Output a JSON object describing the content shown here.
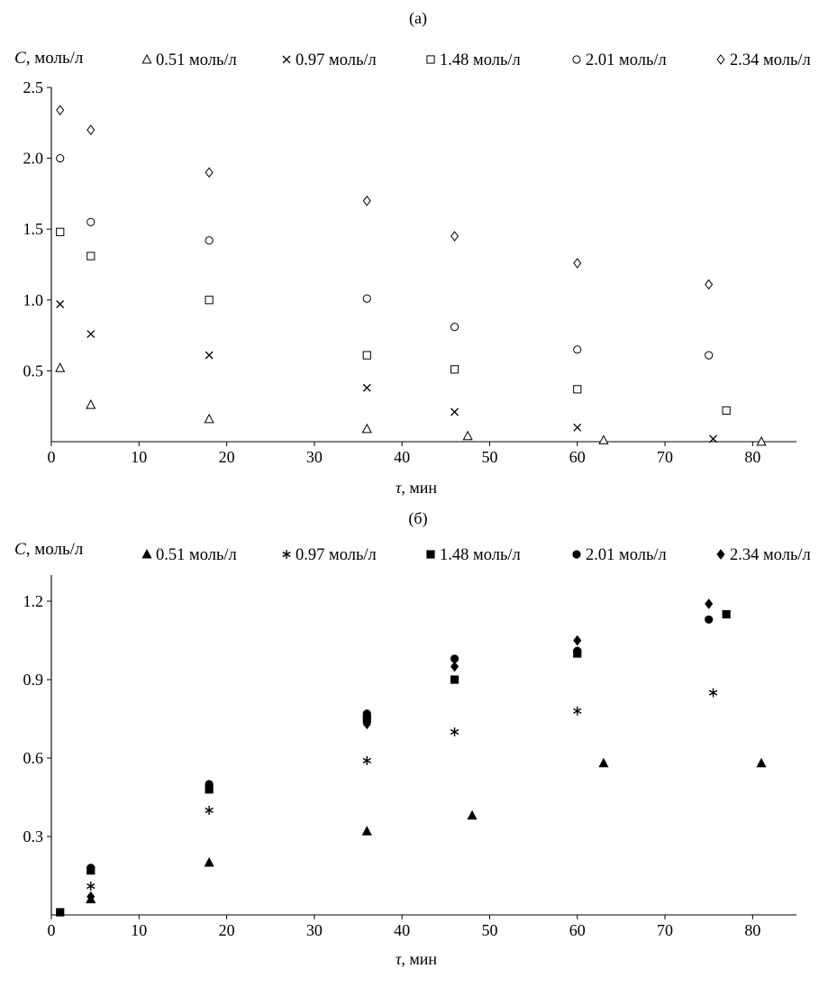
{
  "figure": {
    "background": "#ffffff",
    "ink": "#000000",
    "panel_a_label": "(а)",
    "panel_b_label": "(б)"
  },
  "chart_data": [
    {
      "type": "scatter",
      "title": "(а)",
      "ylabel": "C, моль/л",
      "xlabel": "τ, мин",
      "xlim": [
        0,
        85
      ],
      "ylim": [
        0,
        2.5
      ],
      "xticks": [
        0,
        10,
        20,
        30,
        40,
        50,
        60,
        70,
        80
      ],
      "xtick_labels": [
        "0",
        "10",
        "20",
        "30",
        "40",
        "50",
        "60",
        "70",
        "80"
      ],
      "yticks": [
        0.5,
        1,
        1.5,
        2,
        2.5
      ],
      "ytick_labels": [
        "0.5",
        "1.0",
        "1.5",
        "2.0",
        "2.5"
      ],
      "grid": false,
      "legend_position": "top",
      "series": [
        {
          "name": "0.51 моль/л",
          "marker": "triangle-open",
          "points": [
            [
              1,
              0.52
            ],
            [
              4.5,
              0.26
            ],
            [
              18,
              0.16
            ],
            [
              36,
              0.09
            ],
            [
              47.5,
              0.04
            ],
            [
              63,
              0.01
            ],
            [
              81,
              0.0
            ]
          ]
        },
        {
          "name": "0.97 моль/л",
          "marker": "x",
          "points": [
            [
              1,
              0.97
            ],
            [
              4.5,
              0.76
            ],
            [
              18,
              0.61
            ],
            [
              36,
              0.38
            ],
            [
              46,
              0.21
            ],
            [
              60,
              0.1
            ],
            [
              75.5,
              0.02
            ]
          ]
        },
        {
          "name": "1.48 моль/л",
          "marker": "square-open",
          "points": [
            [
              1,
              1.48
            ],
            [
              4.5,
              1.31
            ],
            [
              18,
              1.0
            ],
            [
              36,
              0.61
            ],
            [
              46,
              0.51
            ],
            [
              60,
              0.37
            ],
            [
              77,
              0.22
            ]
          ]
        },
        {
          "name": "2.01 моль/л",
          "marker": "circle-open",
          "points": [
            [
              1,
              2.0
            ],
            [
              4.5,
              1.55
            ],
            [
              18,
              1.42
            ],
            [
              36,
              1.01
            ],
            [
              46,
              0.81
            ],
            [
              60,
              0.65
            ],
            [
              75,
              0.61
            ]
          ]
        },
        {
          "name": "2.34 моль/л",
          "marker": "diamond-open",
          "points": [
            [
              1,
              2.34
            ],
            [
              4.5,
              2.2
            ],
            [
              18,
              1.9
            ],
            [
              36,
              1.7
            ],
            [
              46,
              1.45
            ],
            [
              60,
              1.26
            ],
            [
              75,
              1.11
            ]
          ]
        }
      ]
    },
    {
      "type": "scatter",
      "title": "(б)",
      "ylabel": "C, моль/л",
      "xlabel": "τ, мин",
      "xlim": [
        0,
        85
      ],
      "ylim": [
        0,
        1.3
      ],
      "xticks": [
        0,
        10,
        20,
        30,
        40,
        50,
        60,
        70,
        80
      ],
      "xtick_labels": [
        "0",
        "10",
        "20",
        "30",
        "40",
        "50",
        "60",
        "70",
        "80"
      ],
      "yticks": [
        0.3,
        0.6,
        0.9,
        1.2
      ],
      "ytick_labels": [
        "0.3",
        "0.6",
        "0.9",
        "1.2"
      ],
      "grid": false,
      "legend_position": "top",
      "series": [
        {
          "name": "0.51 моль/л",
          "marker": "triangle-filled",
          "points": [
            [
              4.5,
              0.06
            ],
            [
              18,
              0.2
            ],
            [
              36,
              0.32
            ],
            [
              48,
              0.38
            ],
            [
              63,
              0.58
            ],
            [
              81,
              0.58
            ]
          ]
        },
        {
          "name": "0.97 моль/л",
          "marker": "asterisk",
          "points": [
            [
              4.5,
              0.11
            ],
            [
              18,
              0.4
            ],
            [
              36,
              0.59
            ],
            [
              46,
              0.7
            ],
            [
              60,
              0.78
            ],
            [
              75.5,
              0.85
            ]
          ]
        },
        {
          "name": "1.48 моль/л",
          "marker": "square-filled",
          "points": [
            [
              1,
              0.01
            ],
            [
              4.5,
              0.17
            ],
            [
              18,
              0.48
            ],
            [
              36,
              0.75
            ],
            [
              46,
              0.9
            ],
            [
              60,
              1.0
            ],
            [
              77,
              1.15
            ]
          ]
        },
        {
          "name": "2.01 моль/л",
          "marker": "circle-filled",
          "points": [
            [
              4.5,
              0.18
            ],
            [
              18,
              0.5
            ],
            [
              36,
              0.77
            ],
            [
              46,
              0.98
            ],
            [
              60,
              1.01
            ],
            [
              75,
              1.13
            ]
          ]
        },
        {
          "name": "2.34 моль/л",
          "marker": "diamond-filled",
          "points": [
            [
              4.5,
              0.07
            ],
            [
              18,
              0.49
            ],
            [
              36,
              0.73
            ],
            [
              46,
              0.95
            ],
            [
              60,
              1.05
            ],
            [
              75,
              1.19
            ]
          ]
        }
      ]
    }
  ]
}
